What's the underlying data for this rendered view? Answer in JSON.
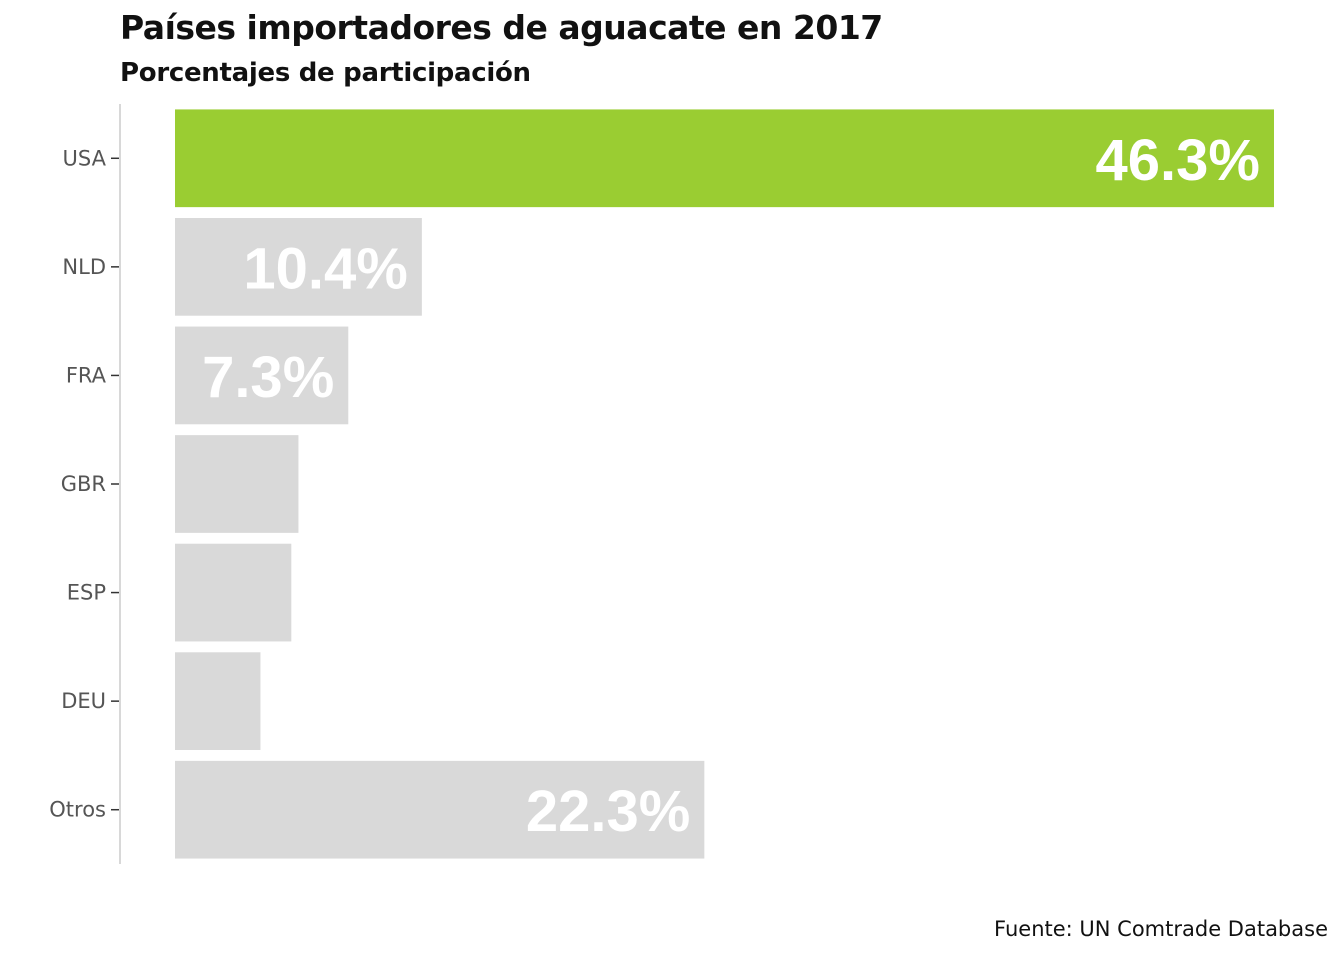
{
  "chart_data": {
    "type": "bar",
    "orientation": "horizontal",
    "title": "Países importadores de aguacate en 2017",
    "subtitle": "Porcentajes de participación",
    "caption": "Fuente: UN Comtrade Database",
    "categories": [
      "USA",
      "NLD",
      "FRA",
      "GBR",
      "ESP",
      "DEU",
      "Otros"
    ],
    "values": [
      46.3,
      10.4,
      7.3,
      5.2,
      4.9,
      3.6,
      22.3
    ],
    "data_labels": [
      "46.3%",
      "10.4%",
      "7.3%",
      "",
      "",
      "",
      "22.3%"
    ],
    "highlight_category": "USA",
    "colors": {
      "highlight": "#9acd32",
      "default": "#d9d9d9",
      "label": "#ffffff"
    },
    "xlim": [
      0,
      46.3
    ],
    "grid": false,
    "x_axis_visible": false
  }
}
